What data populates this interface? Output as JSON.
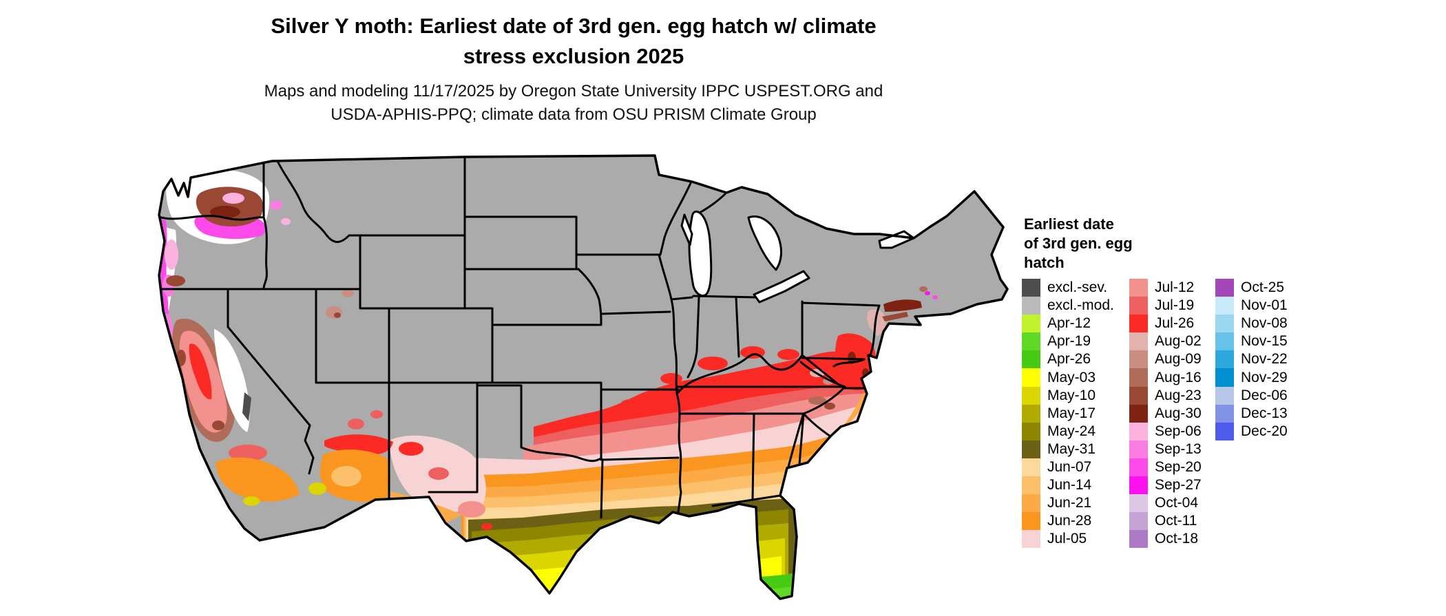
{
  "title": {
    "line1": "Silver Y moth: Earliest date of 3rd gen. egg hatch w/ climate",
    "line2": "stress exclusion 2025"
  },
  "subtitle": {
    "line1": "Maps and modeling 11/17/2025 by Oregon State University IPPC USPEST.ORG and",
    "line2": "USDA-APHIS-PPQ; climate data from OSU PRISM Climate Group"
  },
  "legend": {
    "title_line1": "Earliest date",
    "title_line2": "of 3rd gen. egg",
    "title_line3": "hatch",
    "columns": [
      [
        {
          "label": "excl.-sev.",
          "key": "excl_sev"
        },
        {
          "label": "excl.-mod.",
          "key": "excl_mod"
        },
        {
          "label": "Apr-12",
          "key": "apr12"
        },
        {
          "label": "Apr-19",
          "key": "apr19"
        },
        {
          "label": "Apr-26",
          "key": "apr26"
        },
        {
          "label": "May-03",
          "key": "may03"
        },
        {
          "label": "May-10",
          "key": "may10"
        },
        {
          "label": "May-17",
          "key": "may17"
        },
        {
          "label": "May-24",
          "key": "may24"
        },
        {
          "label": "May-31",
          "key": "may31"
        },
        {
          "label": "Jun-07",
          "key": "jun07"
        },
        {
          "label": "Jun-14",
          "key": "jun14"
        },
        {
          "label": "Jun-21",
          "key": "jun21"
        },
        {
          "label": "Jun-28",
          "key": "jun28"
        },
        {
          "label": "Jul-05",
          "key": "jul05"
        }
      ],
      [
        {
          "label": "Jul-12",
          "key": "jul12"
        },
        {
          "label": "Jul-19",
          "key": "jul19"
        },
        {
          "label": "Jul-26",
          "key": "jul26"
        },
        {
          "label": "Aug-02",
          "key": "aug02"
        },
        {
          "label": "Aug-09",
          "key": "aug09"
        },
        {
          "label": "Aug-16",
          "key": "aug16"
        },
        {
          "label": "Aug-23",
          "key": "aug23"
        },
        {
          "label": "Aug-30",
          "key": "aug30"
        },
        {
          "label": "Sep-06",
          "key": "sep06"
        },
        {
          "label": "Sep-13",
          "key": "sep13"
        },
        {
          "label": "Sep-20",
          "key": "sep20"
        },
        {
          "label": "Sep-27",
          "key": "sep27"
        },
        {
          "label": "Oct-04",
          "key": "oct04"
        },
        {
          "label": "Oct-11",
          "key": "oct11"
        },
        {
          "label": "Oct-18",
          "key": "oct18"
        }
      ],
      [
        {
          "label": "Oct-25",
          "key": "oct25"
        },
        {
          "label": "Nov-01",
          "key": "nov01"
        },
        {
          "label": "Nov-08",
          "key": "nov08"
        },
        {
          "label": "Nov-15",
          "key": "nov15"
        },
        {
          "label": "Nov-22",
          "key": "nov22"
        },
        {
          "label": "Nov-29",
          "key": "nov29"
        },
        {
          "label": "Dec-06",
          "key": "dec06"
        },
        {
          "label": "Dec-13",
          "key": "dec13"
        },
        {
          "label": "Dec-20",
          "key": "dec20"
        }
      ]
    ]
  },
  "palette": {
    "excl_sev": "#4d4d4d",
    "excl_mod": "#b9b9b9",
    "apr12": "#c0f22d",
    "apr19": "#5fd926",
    "apr26": "#46cb12",
    "may03": "#feff00",
    "may10": "#dbd500",
    "may17": "#b1aa00",
    "may24": "#8f8600",
    "may31": "#6b6014",
    "jun07": "#fcd89c",
    "jun14": "#fcc06a",
    "jun21": "#fcaa45",
    "jun28": "#fa961f",
    "jul05": "#f8d3d3",
    "jul12": "#f2918d",
    "jul19": "#ee6060",
    "jul26": "#fb2a25",
    "aug02": "#e2b3ae",
    "aug09": "#c98e81",
    "aug16": "#b06c58",
    "aug23": "#9a4733",
    "aug30": "#7e2312",
    "sep06": "#fbb2de",
    "sep13": "#fa7ce2",
    "sep20": "#fb49ea",
    "sep27": "#fc11f1",
    "oct04": "#dcc8e6",
    "oct11": "#c5a3d5",
    "oct18": "#ae7ac5",
    "oct25": "#a246ba",
    "nov01": "#c9eafa",
    "nov08": "#9bd7f1",
    "nov15": "#66c2e8",
    "nov22": "#2da8da",
    "nov29": "#0090cf",
    "dec06": "#b6c7e8",
    "dec13": "#8292e6",
    "dec20": "#4d5ceb",
    "map_base": "#ababab",
    "no_data": "#ffffff",
    "border": "#000000"
  }
}
